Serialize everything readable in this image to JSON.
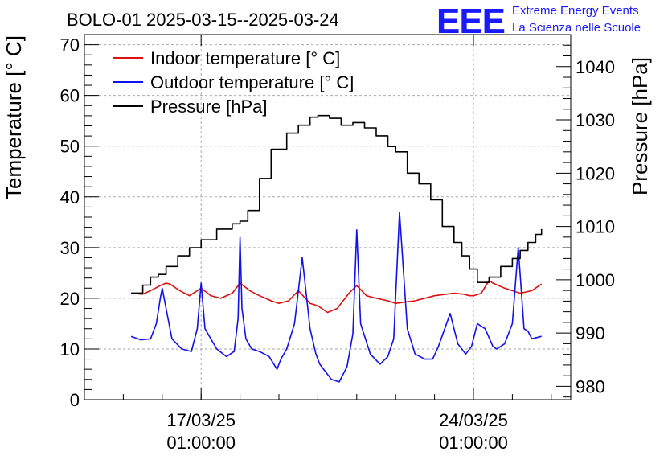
{
  "chart_data": {
    "type": "line",
    "title": "BOLO-01 2025-03-15--2025-03-24",
    "logo": {
      "mark": "EEE",
      "line1": "Extreme Energy Events",
      "line2": "La Scienza nelle Scuole",
      "color": "#1a1aff"
    },
    "ylabel_left": "Temperature [° C]",
    "ylabel_right": "Pressure [hPa]",
    "ylim_left": [
      0,
      72
    ],
    "ylim_right": [
      977.5,
      1046
    ],
    "yticks_left": [
      "0",
      "10",
      "20",
      "30",
      "40",
      "50",
      "60",
      "70"
    ],
    "yticks_right": [
      "980",
      "990",
      "1000",
      "1010",
      "1020",
      "1030",
      "1040"
    ],
    "xlim": [
      -2.0,
      10.5
    ],
    "xticks": [
      {
        "x": 1.0,
        "date": "17/03/25",
        "time": "01:00:00"
      },
      {
        "x": 8.0,
        "date": "24/03/25",
        "time": "01:00:00"
      }
    ],
    "x_unit": "days since 2025-03-16 01:00",
    "grid": true,
    "legend_position": "top-left",
    "series": [
      {
        "name": "Indoor temperature [° C]",
        "color": "#dd1111",
        "axis": "left",
        "x": [
          -0.8,
          -0.5,
          -0.3,
          -0.05,
          0.1,
          0.2,
          0.45,
          0.7,
          1.0,
          1.25,
          1.5,
          1.8,
          2.0,
          2.25,
          2.5,
          2.8,
          3.0,
          3.25,
          3.5,
          3.8,
          4.0,
          4.25,
          4.5,
          4.8,
          5.0,
          5.25,
          5.5,
          5.8,
          6.0,
          6.5,
          7.0,
          7.5,
          7.75,
          7.9,
          8.0,
          8.2,
          8.4,
          8.5,
          8.8,
          9.0,
          9.2,
          9.5,
          9.75
        ],
        "values": [
          21.0,
          20.8,
          21.5,
          22.5,
          23.0,
          22.8,
          21.5,
          20.5,
          22.0,
          20.5,
          20.0,
          21.0,
          23.0,
          21.5,
          20.5,
          19.5,
          19.0,
          19.5,
          21.5,
          19.0,
          18.5,
          17.2,
          18.0,
          21.0,
          22.5,
          20.5,
          20.0,
          19.5,
          19.0,
          19.5,
          20.5,
          21.0,
          20.8,
          20.5,
          20.5,
          21.0,
          23.5,
          23.0,
          22.0,
          21.5,
          21.0,
          21.5,
          22.8
        ]
      },
      {
        "name": "Outdoor temperature [° C]",
        "color": "#1111ee",
        "axis": "left",
        "x": [
          -0.8,
          -0.55,
          -0.3,
          -0.15,
          -0.05,
          0.0,
          0.1,
          0.25,
          0.5,
          0.75,
          0.9,
          1.0,
          1.1,
          1.4,
          1.65,
          1.85,
          1.95,
          2.0,
          2.05,
          2.15,
          2.3,
          2.5,
          2.75,
          2.95,
          3.05,
          3.2,
          3.4,
          3.6,
          3.8,
          3.95,
          4.05,
          4.15,
          4.35,
          4.55,
          4.75,
          4.9,
          5.0,
          5.1,
          5.35,
          5.6,
          5.8,
          5.95,
          6.1,
          6.3,
          6.5,
          6.75,
          6.95,
          7.1,
          7.4,
          7.6,
          7.8,
          7.95,
          8.1,
          8.3,
          8.5,
          8.6,
          8.8,
          9.0,
          9.15,
          9.3,
          9.4,
          9.5,
          9.75
        ],
        "values": [
          12.5,
          11.8,
          12.0,
          15.0,
          20.0,
          22.0,
          18.0,
          12.0,
          10.0,
          9.5,
          14.0,
          23.0,
          14.0,
          10.0,
          8.5,
          9.5,
          16.0,
          32.0,
          18.0,
          12.0,
          10.0,
          9.5,
          8.5,
          6.0,
          8.0,
          10.0,
          15.0,
          28.0,
          14.0,
          9.0,
          7.0,
          6.0,
          4.0,
          3.5,
          6.5,
          13.0,
          33.5,
          15.0,
          9.0,
          7.0,
          8.5,
          12.0,
          37.0,
          14.0,
          9.0,
          8.0,
          8.0,
          10.5,
          17.0,
          11.0,
          9.0,
          10.5,
          15.0,
          14.0,
          10.5,
          10.0,
          11.0,
          15.0,
          30.0,
          14.0,
          13.5,
          12.0,
          12.5
        ]
      },
      {
        "name": "Pressure [hPa]",
        "color": "#000000",
        "axis": "right",
        "x": [
          -0.8,
          -0.5,
          -0.3,
          -0.1,
          0.1,
          0.4,
          0.7,
          1.0,
          1.4,
          1.8,
          2.0,
          2.2,
          2.5,
          2.8,
          3.2,
          3.5,
          3.8,
          4.0,
          4.3,
          4.6,
          4.9,
          5.2,
          5.5,
          5.8,
          6.0,
          6.3,
          6.6,
          6.9,
          7.2,
          7.5,
          7.7,
          7.9,
          8.1,
          8.4,
          8.7,
          9.0,
          9.2,
          9.4,
          9.6,
          9.75
        ],
        "values": [
          997.5,
          999.0,
          1000.5,
          1001.0,
          1002.5,
          1004.5,
          1006.0,
          1007.5,
          1009.5,
          1010.5,
          1011.0,
          1013.0,
          1019.0,
          1024.5,
          1027.5,
          1029.0,
          1030.5,
          1030.8,
          1030.3,
          1029.0,
          1029.5,
          1028.5,
          1027.0,
          1025.0,
          1024.0,
          1020.0,
          1018.0,
          1015.0,
          1010.0,
          1007.0,
          1004.5,
          1002.0,
          999.5,
          1000.5,
          1002.5,
          1004.0,
          1005.5,
          1007.0,
          1008.5,
          1009.5
        ]
      }
    ]
  }
}
